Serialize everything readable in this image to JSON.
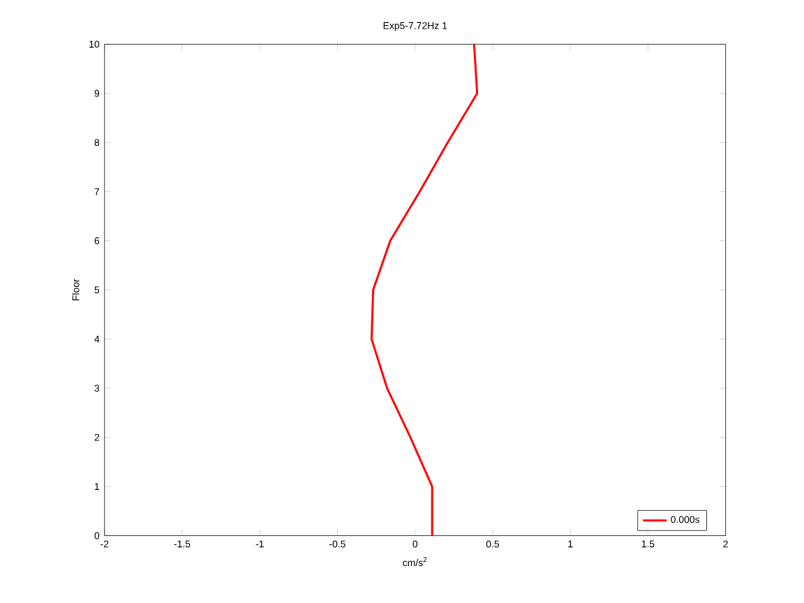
{
  "chart_data": {
    "type": "line",
    "title": "Exp5-7.72Hz 1",
    "xlabel": "cm/s$^{2}$",
    "ylabel": "Floor",
    "series": [
      {
        "name": "0.000s",
        "color": "#ff0000",
        "x": [
          0.11,
          0.11,
          -0.03,
          -0.18,
          -0.28,
          -0.27,
          -0.16,
          0.03,
          0.21,
          0.4,
          0.38
        ],
        "values": [
          0,
          1,
          2,
          3,
          4,
          5,
          6,
          7,
          8,
          9,
          10
        ]
      }
    ],
    "xlim": [
      -2,
      2
    ],
    "ylim": [
      0,
      10
    ],
    "xticks": [
      -2,
      -1.5,
      -1,
      -0.5,
      0,
      0.5,
      1,
      1.5,
      2
    ],
    "yticks": [
      0,
      1,
      2,
      3,
      4,
      5,
      6,
      7,
      8,
      9,
      10
    ],
    "legend": "bottom right",
    "grid": false,
    "line_style": "solid",
    "marker": "none"
  }
}
